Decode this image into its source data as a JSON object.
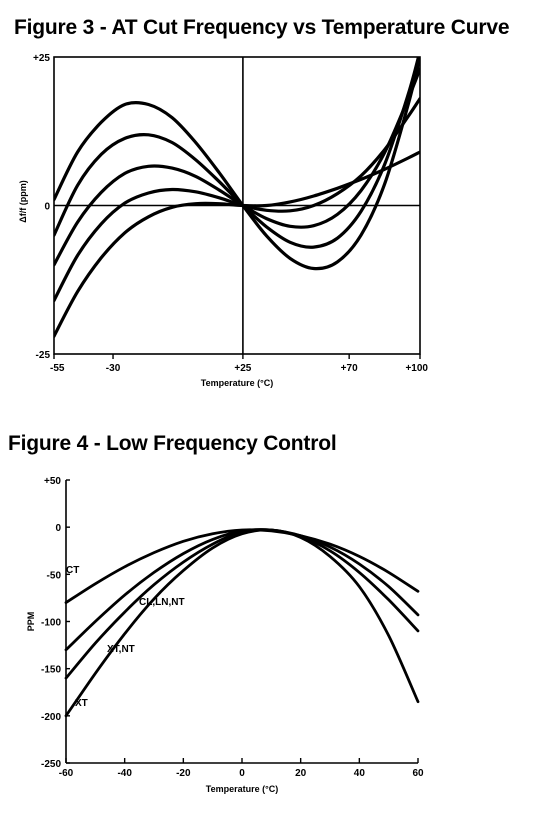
{
  "figure3": {
    "title": "Figure 3 - AT Cut Frequency vs Temperature Curve",
    "chart_data": {
      "type": "line",
      "title": "Figure 3 - AT Cut Frequency vs Temperature Curve",
      "xlabel": "Temperature (°C)",
      "ylabel": "Δf/f (ppm)",
      "xlim": [
        -55,
        100
      ],
      "ylim": [
        -25,
        25
      ],
      "x_ticks": [
        "-55",
        "-30",
        "+25",
        "+70",
        "+100"
      ],
      "y_ticks": [
        "+25",
        "0",
        "-25"
      ],
      "grid": false,
      "center_x": 25,
      "series": [
        {
          "x": [
            -55,
            -45,
            -35,
            -25,
            -15,
            -5,
            5,
            15,
            25,
            35,
            45,
            55,
            65,
            75,
            85,
            95,
            100
          ],
          "values": [
            1,
            9,
            14,
            17,
            17,
            14.8,
            10.6,
            5.5,
            0,
            -5.1,
            -8.9,
            -10.6,
            -9.5,
            -5,
            3.6,
            17,
            25
          ]
        },
        {
          "x": [
            -55,
            -45,
            -35,
            -25,
            -15,
            -5,
            5,
            15,
            25,
            35,
            45,
            55,
            65,
            75,
            85,
            95,
            100
          ],
          "values": [
            -5,
            3.4,
            8.6,
            11.3,
            11.9,
            10.6,
            7.7,
            4,
            0,
            -3.6,
            -6.2,
            -7,
            -5.5,
            -1,
            6.9,
            18.7,
            26
          ]
        },
        {
          "x": [
            -55,
            -45,
            -35,
            -25,
            -15,
            -5,
            5,
            15,
            25,
            35,
            45,
            55,
            65,
            75,
            85,
            95,
            100
          ],
          "values": [
            -10,
            -2.8,
            2.2,
            5.4,
            6.6,
            6.3,
            4.9,
            2.6,
            0,
            -2.2,
            -3.5,
            -3.4,
            -1.5,
            2.5,
            8.9,
            18,
            23
          ]
        },
        {
          "x": [
            -55,
            -45,
            -35,
            -25,
            -15,
            -5,
            5,
            15,
            25,
            35,
            45,
            55,
            65,
            75,
            85,
            95,
            100
          ],
          "values": [
            -16,
            -8.4,
            -3.1,
            0.4,
            2.1,
            2.7,
            2.3,
            1.3,
            0,
            -0.8,
            -0.9,
            0,
            2,
            5,
            9.4,
            15,
            18
          ]
        },
        {
          "x": [
            -55,
            -45,
            -35,
            -25,
            -15,
            -5,
            5,
            15,
            25,
            35,
            45,
            55,
            65,
            75,
            85,
            95,
            100
          ],
          "values": [
            -22,
            -14.5,
            -8.8,
            -4.6,
            -1.9,
            -0.3,
            0.3,
            0.3,
            0,
            0,
            0.6,
            1.6,
            2.9,
            4.4,
            6.1,
            8,
            9
          ]
        }
      ]
    }
  },
  "figure4": {
    "title": "Figure 4 - Low Frequency Control",
    "chart_data": {
      "type": "line",
      "title": "Figure 4 - Low Frequency Control",
      "xlabel": "Temperature (°C)",
      "ylabel": "PPM",
      "xlim": [
        -60,
        60
      ],
      "ylim": [
        -250,
        50
      ],
      "x_ticks": [
        "-60",
        "-40",
        "-20",
        "0",
        "20",
        "40",
        "60"
      ],
      "y_ticks": [
        "+50",
        "0",
        "-50",
        "-100",
        "-150",
        "-200",
        "-250"
      ],
      "grid": false,
      "series": [
        {
          "name": "CT",
          "x": [
            -60,
            -50,
            -40,
            -30,
            -20,
            -10,
            0,
            10,
            20,
            30,
            40,
            50,
            60
          ],
          "values": [
            -80,
            -60,
            -42,
            -27,
            -15,
            -7,
            -3,
            -4,
            -9,
            -18,
            -31,
            -48,
            -68
          ]
        },
        {
          "name": "CL,LN,NT",
          "x": [
            -60,
            -50,
            -40,
            -30,
            -20,
            -10,
            0,
            10,
            20,
            30,
            40,
            50,
            60
          ],
          "values": [
            -130,
            -100,
            -72,
            -48,
            -28,
            -13,
            -4,
            -3,
            -9,
            -21,
            -39,
            -63,
            -93
          ]
        },
        {
          "name": "XT,NT",
          "x": [
            -60,
            -50,
            -40,
            -30,
            -20,
            -10,
            0,
            10,
            20,
            30,
            40,
            50,
            60
          ],
          "values": [
            -160,
            -123,
            -90,
            -61,
            -37,
            -18,
            -5,
            -3,
            -10,
            -25,
            -48,
            -77,
            -110
          ]
        },
        {
          "name": "XT",
          "x": [
            -60,
            -50,
            -40,
            -30,
            -20,
            -10,
            0,
            10,
            20,
            30,
            40,
            50,
            60
          ],
          "values": [
            -200,
            -155,
            -113,
            -76,
            -46,
            -22,
            -7,
            -3,
            -11,
            -31,
            -63,
            -115,
            -185
          ]
        }
      ],
      "labels": [
        "CT",
        "CL,LN,NT",
        "XT,NT",
        "XT"
      ]
    }
  }
}
